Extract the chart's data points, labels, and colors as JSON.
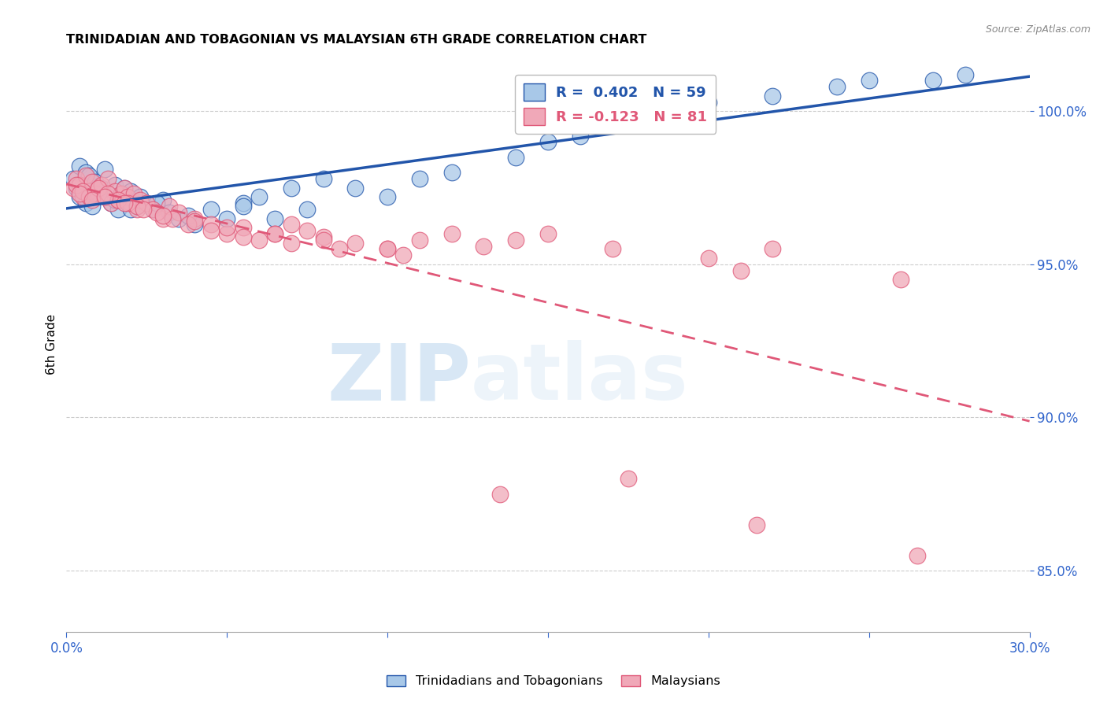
{
  "title": "TRINIDADIAN AND TOBAGONIAN VS MALAYSIAN 6TH GRADE CORRELATION CHART",
  "source": "Source: ZipAtlas.com",
  "ylabel": "6th Grade",
  "xmin": 0.0,
  "xmax": 30.0,
  "ymin": 83.0,
  "ymax": 101.8,
  "yticks": [
    85.0,
    90.0,
    95.0,
    100.0
  ],
  "blue_color": "#A8C8E8",
  "pink_color": "#F0A8B8",
  "blue_line_color": "#2255AA",
  "pink_line_color": "#E05878",
  "legend_R_blue": "0.402",
  "legend_N_blue": "59",
  "legend_R_pink": "-0.123",
  "legend_N_pink": "81",
  "watermark_zip": "ZIP",
  "watermark_atlas": "atlas",
  "blue_scatter_x": [
    0.2,
    0.3,
    0.4,
    0.5,
    0.6,
    0.7,
    0.8,
    0.9,
    1.0,
    1.1,
    1.2,
    1.3,
    1.4,
    1.5,
    1.6,
    1.7,
    1.8,
    1.9,
    2.0,
    2.1,
    2.2,
    2.3,
    2.5,
    2.7,
    3.0,
    3.2,
    3.5,
    4.0,
    4.5,
    5.0,
    5.5,
    6.0,
    6.5,
    7.0,
    7.5,
    8.0,
    9.0,
    10.0,
    11.0,
    12.0,
    14.0,
    15.0,
    16.0,
    18.0,
    20.0,
    22.0,
    24.0,
    25.0,
    27.0,
    28.0,
    0.4,
    0.6,
    0.8,
    1.0,
    1.5,
    2.0,
    2.8,
    3.8,
    5.5
  ],
  "blue_scatter_y": [
    97.8,
    97.5,
    98.2,
    97.6,
    98.0,
    97.9,
    97.3,
    97.7,
    97.4,
    97.5,
    98.1,
    97.2,
    97.0,
    97.6,
    96.8,
    97.3,
    97.5,
    97.1,
    97.4,
    97.0,
    96.9,
    97.2,
    97.0,
    96.8,
    97.1,
    96.7,
    96.5,
    96.3,
    96.8,
    96.5,
    97.0,
    97.2,
    96.5,
    97.5,
    96.8,
    97.8,
    97.5,
    97.2,
    97.8,
    98.0,
    98.5,
    99.0,
    99.2,
    100.0,
    100.3,
    100.5,
    100.8,
    101.0,
    101.0,
    101.2,
    97.2,
    97.0,
    96.9,
    97.3,
    97.1,
    96.8,
    97.0,
    96.6,
    96.9
  ],
  "pink_scatter_x": [
    0.2,
    0.3,
    0.4,
    0.5,
    0.6,
    0.7,
    0.8,
    0.9,
    1.0,
    1.1,
    1.2,
    1.3,
    1.4,
    1.5,
    1.6,
    1.7,
    1.8,
    1.9,
    2.0,
    2.1,
    2.2,
    2.3,
    2.5,
    2.7,
    3.0,
    3.2,
    3.5,
    4.0,
    4.5,
    5.0,
    5.5,
    6.0,
    6.5,
    7.0,
    7.5,
    8.0,
    9.0,
    10.0,
    11.0,
    12.0,
    13.0,
    14.0,
    15.0,
    17.0,
    20.0,
    21.0,
    22.0,
    26.0,
    0.3,
    0.5,
    0.7,
    1.0,
    1.3,
    1.6,
    1.9,
    2.2,
    2.8,
    3.3,
    3.8,
    4.5,
    5.5,
    7.0,
    8.5,
    10.5,
    0.4,
    0.8,
    1.2,
    1.8,
    2.4,
    3.0,
    4.0,
    5.0,
    6.5,
    8.0,
    10.0,
    13.5,
    17.5,
    21.5,
    26.5
  ],
  "pink_scatter_y": [
    97.5,
    97.8,
    97.6,
    97.2,
    97.9,
    97.4,
    97.7,
    97.3,
    97.5,
    97.6,
    97.2,
    97.8,
    97.0,
    97.4,
    97.1,
    97.3,
    97.5,
    97.2,
    97.0,
    97.3,
    96.8,
    97.1,
    97.0,
    96.8,
    96.5,
    96.9,
    96.7,
    96.5,
    96.3,
    96.0,
    96.2,
    95.8,
    96.0,
    96.3,
    96.1,
    95.9,
    95.7,
    95.5,
    95.8,
    96.0,
    95.6,
    95.8,
    96.0,
    95.5,
    95.2,
    94.8,
    95.5,
    94.5,
    97.6,
    97.4,
    97.2,
    97.5,
    97.3,
    97.1,
    97.0,
    96.9,
    96.7,
    96.5,
    96.3,
    96.1,
    95.9,
    95.7,
    95.5,
    95.3,
    97.3,
    97.1,
    97.2,
    97.0,
    96.8,
    96.6,
    96.4,
    96.2,
    96.0,
    95.8,
    95.5,
    87.5,
    88.0,
    86.5,
    85.5
  ]
}
